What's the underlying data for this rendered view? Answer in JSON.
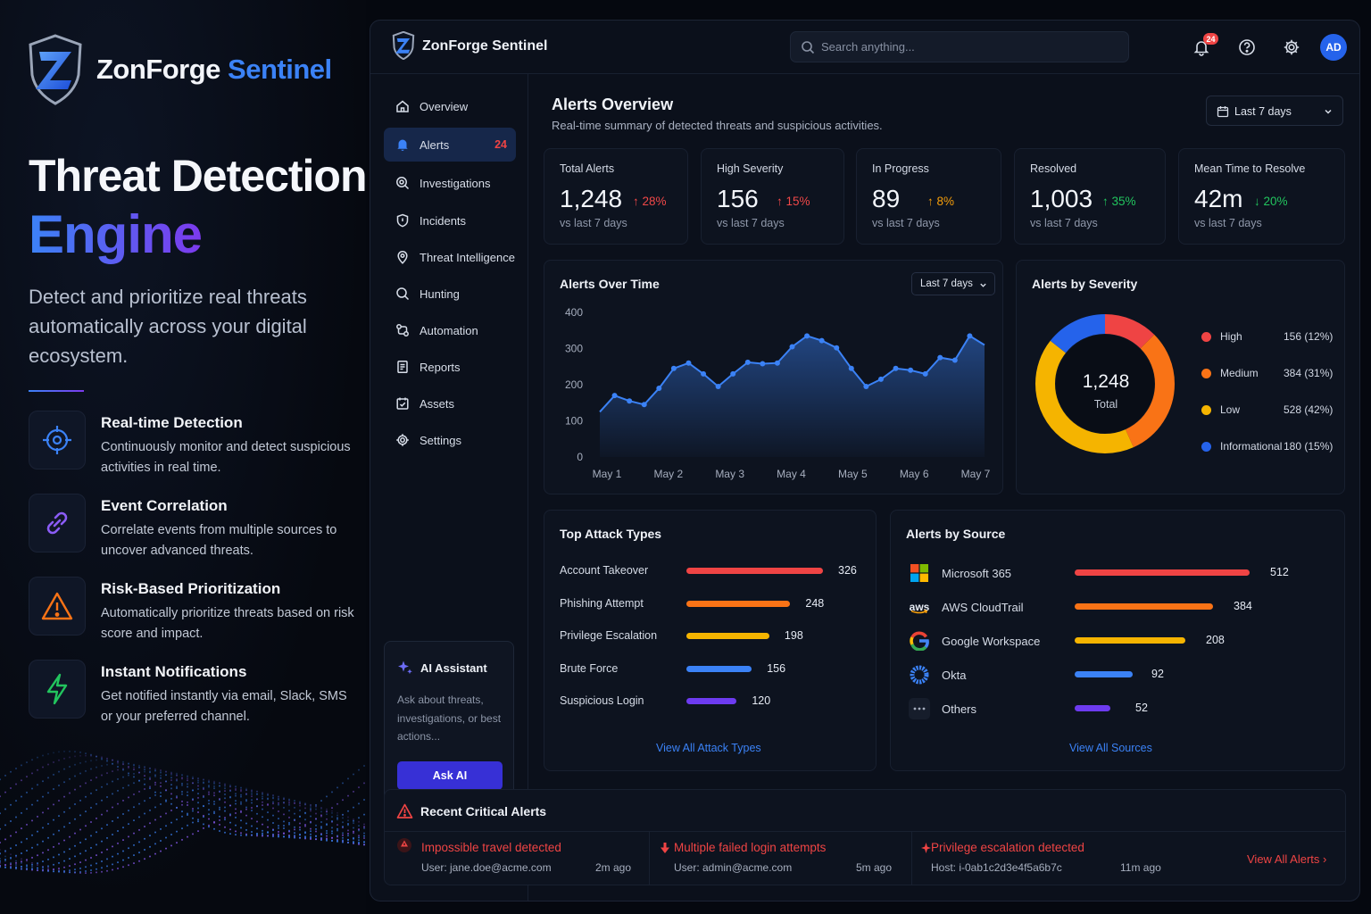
{
  "promo": {
    "brand_name": "ZonForge",
    "brand_accent": "Sentinel",
    "hero_line1": "Threat Detection",
    "hero_line2": "Engine",
    "description": "Detect and prioritize real threats automatically across your digital ecosystem.",
    "features": [
      {
        "icon": "crosshair-icon",
        "title": "Real-time Detection",
        "desc": "Continuously monitor and detect suspicious activities in real time."
      },
      {
        "icon": "link-icon",
        "title": "Event Correlation",
        "desc": "Correlate events from multiple sources to uncover advanced threats."
      },
      {
        "icon": "warning-icon",
        "title": "Risk-Based Prioritization",
        "desc": "Automatically prioritize threats based on risk score and impact."
      },
      {
        "icon": "lightning-icon",
        "title": "Instant Notifications",
        "desc": "Get notified instantly via email, Slack, SMS or your preferred channel."
      }
    ]
  },
  "topbar": {
    "app_name": "ZonForge Sentinel",
    "search_placeholder": "Search anything...",
    "notification_count": "24",
    "avatar_initials": "AD"
  },
  "sidebar": {
    "items": [
      {
        "label": "Overview",
        "icon": "home-icon"
      },
      {
        "label": "Alerts",
        "icon": "bell-icon",
        "badge": "24",
        "active": true
      },
      {
        "label": "Investigations",
        "icon": "magnifier-target-icon"
      },
      {
        "label": "Incidents",
        "icon": "shield-icon"
      },
      {
        "label": "Threat Intelligence",
        "icon": "location-pin-icon"
      },
      {
        "label": "Hunting",
        "icon": "search-icon"
      },
      {
        "label": "Automation",
        "icon": "workflow-icon"
      },
      {
        "label": "Reports",
        "icon": "report-icon"
      },
      {
        "label": "Assets",
        "icon": "assets-icon"
      },
      {
        "label": "Settings",
        "icon": "gear-icon"
      }
    ],
    "ai": {
      "title": "AI Assistant",
      "desc": "Ask about threats, investigations, or best actions...",
      "button": "Ask AI"
    }
  },
  "main": {
    "title": "Alerts Overview",
    "subtitle": "Real-time summary of detected threats and suspicious activities.",
    "range": "Last 7 days",
    "stats": [
      {
        "label": "Total Alerts",
        "value": "1,248",
        "change": "28%",
        "direction": "up",
        "color": "#f04848",
        "compare": "vs last 7 days"
      },
      {
        "label": "High Severity",
        "value": "156",
        "change": "15%",
        "direction": "up",
        "color": "#f04848",
        "compare": "vs last 7 days"
      },
      {
        "label": "In Progress",
        "value": "89",
        "change": "8%",
        "direction": "up",
        "color": "#f59e0b",
        "compare": "vs last 7 days"
      },
      {
        "label": "Resolved",
        "value": "1,003",
        "change": "35%",
        "direction": "up",
        "color": "#22c55e",
        "compare": "vs last 7 days"
      },
      {
        "label": "Mean Time to Resolve",
        "value": "42m",
        "change": "20%",
        "direction": "down",
        "color": "#22c55e",
        "compare": "vs last 7 days"
      }
    ],
    "alerts_over_time": {
      "title": "Alerts Over Time",
      "range": "Last 7 days"
    },
    "severity": {
      "title": "Alerts by Severity",
      "total": "1,248",
      "total_label": "Total"
    },
    "attack_types": {
      "title": "Top Attack Types",
      "link": "View All Attack Types"
    },
    "sources": {
      "title": "Alerts by Source",
      "link": "View All Sources",
      "items": [
        {
          "name": "Microsoft 365",
          "value": 512,
          "color": "#ef4444",
          "icon": "microsoft-logo-icon"
        },
        {
          "name": "AWS CloudTrail",
          "value": 384,
          "color": "#f97316",
          "icon": "aws-logo-icon",
          "logo_text": "aws"
        },
        {
          "name": "Google Workspace",
          "value": 208,
          "color": "#f59e0b",
          "icon": "google-logo-icon"
        },
        {
          "name": "Okta",
          "value": 92,
          "color": "#3b82f6",
          "icon": "okta-logo-icon"
        },
        {
          "name": "Others",
          "value": 52,
          "color": "#6d3bf0",
          "icon": "more-dots-icon"
        }
      ]
    },
    "recent": {
      "title": "Recent Critical Alerts",
      "link": "View All Alerts",
      "items": [
        {
          "title": "Impossible travel detected",
          "detail": "User: jane.doe@acme.com",
          "ago": "2m ago"
        },
        {
          "title": "Multiple failed login attempts",
          "detail": "User: admin@acme.com",
          "ago": "5m ago"
        },
        {
          "title": "Privilege escalation detected",
          "detail": "Host: i-0ab1c2d3e4f5a6b7c",
          "ago": "11m ago"
        }
      ]
    }
  },
  "chart_data": [
    {
      "type": "area",
      "title": "Alerts Over Time",
      "x_ticks": [
        "May 1",
        "May 2",
        "May 3",
        "May 4",
        "May 5",
        "May 6",
        "May 7"
      ],
      "ylim": [
        0,
        400
      ],
      "y_ticks": [
        0,
        100,
        200,
        300,
        400
      ],
      "grid": false,
      "series": [
        {
          "values": [
            125,
            170,
            155,
            145,
            190,
            245,
            260,
            230,
            195,
            230,
            262,
            258,
            260,
            305,
            335,
            322,
            302,
            245,
            195,
            215,
            245,
            240,
            230,
            275,
            268,
            335,
            310
          ]
        }
      ],
      "color": "#3b82f6"
    },
    {
      "type": "pie",
      "title": "Alerts by Severity",
      "donut": true,
      "categories": [
        "High",
        "Medium",
        "Low",
        "Informational"
      ],
      "values": [
        156,
        384,
        528,
        180
      ],
      "labels": [
        "156 (12%)",
        "384 (31%)",
        "528 (42%)",
        "180 (15%)"
      ],
      "colors": [
        "#ef4444",
        "#f97316",
        "#f5b400",
        "#2563eb"
      ]
    },
    {
      "type": "bar",
      "orientation": "horizontal",
      "title": "Top Attack Types",
      "categories": [
        "Account Takeover",
        "Phishing Attempt",
        "Privilege Escalation",
        "Brute Force",
        "Suspicious Login"
      ],
      "values": [
        326,
        248,
        198,
        156,
        120
      ],
      "colors": [
        "#ef4444",
        "#f97316",
        "#f5b400",
        "#3b82f6",
        "#6d3bf0"
      ]
    }
  ]
}
